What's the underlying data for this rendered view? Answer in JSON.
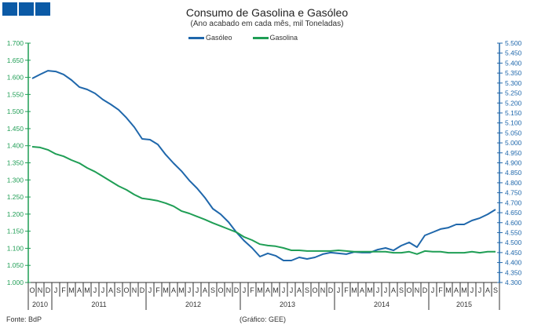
{
  "chart_data": {
    "type": "line",
    "title": "Consumo de Gasolina e Gasóleo",
    "subtitle": "(Ano acabado em cada mês, mil Toneladas)",
    "months": [
      "O",
      "N",
      "D",
      "J",
      "F",
      "M",
      "A",
      "M",
      "J",
      "J",
      "A",
      "S",
      "O",
      "N",
      "D",
      "J",
      "F",
      "M",
      "A",
      "M",
      "J",
      "J",
      "A",
      "S",
      "O",
      "N",
      "D",
      "J",
      "F",
      "M",
      "A",
      "M",
      "J",
      "J",
      "A",
      "S",
      "O",
      "N",
      "D",
      "J",
      "F",
      "M",
      "A",
      "M",
      "J",
      "J",
      "A",
      "S",
      "O",
      "N",
      "D",
      "J",
      "F",
      "M",
      "A",
      "M",
      "J",
      "J",
      "A",
      "S"
    ],
    "years": [
      {
        "label": "2010",
        "months": 3
      },
      {
        "label": "2011",
        "months": 12
      },
      {
        "label": "2012",
        "months": 12
      },
      {
        "label": "2013",
        "months": 12
      },
      {
        "label": "2014",
        "months": 12
      },
      {
        "label": "2015",
        "months": 9
      }
    ],
    "left_axis": {
      "min": 1.0,
      "max": 1.7,
      "step": 0.05,
      "ticks": [
        "1.000",
        "1.050",
        "1.100",
        "1.150",
        "1.200",
        "1.250",
        "1.300",
        "1.350",
        "1.400",
        "1.450",
        "1.500",
        "1.550",
        "1.600",
        "1.650",
        "1.700"
      ],
      "color": "#1f9e55"
    },
    "right_axis": {
      "min": 4.3,
      "max": 5.5,
      "step": 0.05,
      "ticks": [
        "4.300",
        "4.350",
        "4.400",
        "4.450",
        "4.500",
        "4.550",
        "4.600",
        "4.650",
        "4.700",
        "4.750",
        "4.800",
        "4.850",
        "4.900",
        "4.950",
        "5.000",
        "5.050",
        "5.100",
        "5.150",
        "5.200",
        "5.250",
        "5.300",
        "5.350",
        "5.400",
        "5.450",
        "5.500"
      ],
      "color": "#1f67ab"
    },
    "series": [
      {
        "name": "Gasóleo",
        "axis": "right",
        "color": "#1f67ab",
        "values": [
          5.323,
          5.343,
          5.362,
          5.358,
          5.343,
          5.315,
          5.28,
          5.268,
          5.248,
          5.217,
          5.193,
          5.166,
          5.126,
          5.079,
          5.02,
          5.016,
          4.992,
          4.941,
          4.898,
          4.859,
          4.812,
          4.772,
          4.725,
          4.67,
          4.642,
          4.603,
          4.552,
          4.509,
          4.473,
          4.43,
          4.446,
          4.434,
          4.41,
          4.41,
          4.426,
          4.418,
          4.426,
          4.442,
          4.45,
          4.446,
          4.442,
          4.453,
          4.45,
          4.45,
          4.465,
          4.473,
          4.461,
          4.485,
          4.501,
          4.477,
          4.536,
          4.552,
          4.568,
          4.575,
          4.591,
          4.591,
          4.611,
          4.623,
          4.642,
          4.666
        ]
      },
      {
        "name": "Gasolina",
        "axis": "left",
        "color": "#1f9e55",
        "values": [
          1.397,
          1.395,
          1.388,
          1.376,
          1.369,
          1.358,
          1.349,
          1.335,
          1.324,
          1.31,
          1.296,
          1.282,
          1.271,
          1.257,
          1.246,
          1.243,
          1.239,
          1.232,
          1.223,
          1.209,
          1.202,
          1.193,
          1.184,
          1.174,
          1.165,
          1.156,
          1.147,
          1.133,
          1.124,
          1.112,
          1.108,
          1.106,
          1.101,
          1.094,
          1.094,
          1.092,
          1.092,
          1.092,
          1.092,
          1.094,
          1.092,
          1.09,
          1.09,
          1.09,
          1.09,
          1.09,
          1.087,
          1.087,
          1.09,
          1.083,
          1.092,
          1.09,
          1.09,
          1.087,
          1.087,
          1.087,
          1.09,
          1.087,
          1.09,
          1.09
        ]
      }
    ],
    "legend": "top-center",
    "grid": false
  },
  "footer": {
    "source": "Fonte: BdP",
    "credit": "(Gráfico:  GEE)"
  }
}
